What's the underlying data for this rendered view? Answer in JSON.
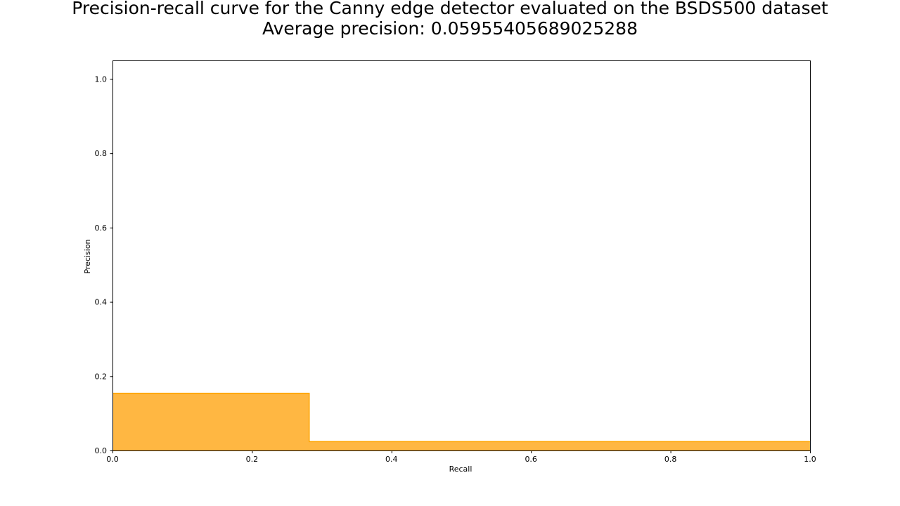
{
  "chart_data": {
    "type": "area",
    "title": "Precision-recall curve for the Canny edge detector evaluated on the BSDS500 dataset",
    "subtitle": "Average precision: 0.05955405689025288",
    "xlabel": "Recall",
    "ylabel": "Precision",
    "xlim": [
      0.0,
      1.0
    ],
    "ylim": [
      0.0,
      1.05
    ],
    "xticks": [
      "0.0",
      "0.2",
      "0.4",
      "0.6",
      "0.8",
      "1.0"
    ],
    "yticks": [
      "0.0",
      "0.2",
      "0.4",
      "0.6",
      "0.8",
      "1.0"
    ],
    "grid": false,
    "step": "post",
    "series": [
      {
        "color": "#ffb742",
        "edge_color": "#ffa500",
        "x": [
          0.0,
          0.282,
          0.282,
          1.0
        ],
        "y": [
          0.154,
          0.154,
          0.024,
          0.024
        ]
      }
    ]
  }
}
